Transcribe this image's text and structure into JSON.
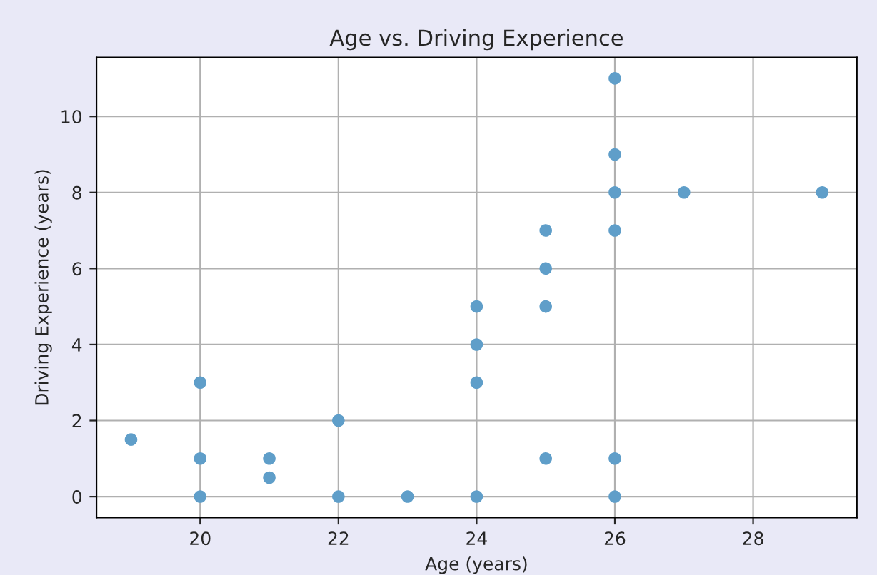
{
  "chart_data": {
    "type": "scatter",
    "title": "Age vs. Driving Experience",
    "xlabel": "Age (years)",
    "ylabel": "Driving Experience (years)",
    "x": [
      19,
      20,
      20,
      20,
      21,
      21,
      22,
      22,
      23,
      24,
      24,
      24,
      24,
      25,
      25,
      25,
      25,
      26,
      26,
      26,
      26,
      26,
      26,
      27,
      29
    ],
    "series": [
      {
        "color": "#5f9ec9",
        "values": [
          1.5,
          3,
          1,
          0,
          1,
          0.5,
          2,
          0,
          0,
          5,
          4,
          3,
          0,
          7,
          6,
          5,
          1,
          11,
          9,
          8,
          7,
          1,
          0,
          8,
          8
        ]
      }
    ],
    "xlim": [
      18.5,
      29.5
    ],
    "xticks": [
      20,
      22,
      24,
      26,
      28
    ],
    "ylim": [
      -0.55,
      11.55
    ],
    "yticks": [
      0,
      2,
      4,
      6,
      8,
      10
    ],
    "grid": true,
    "marker": "circle"
  }
}
